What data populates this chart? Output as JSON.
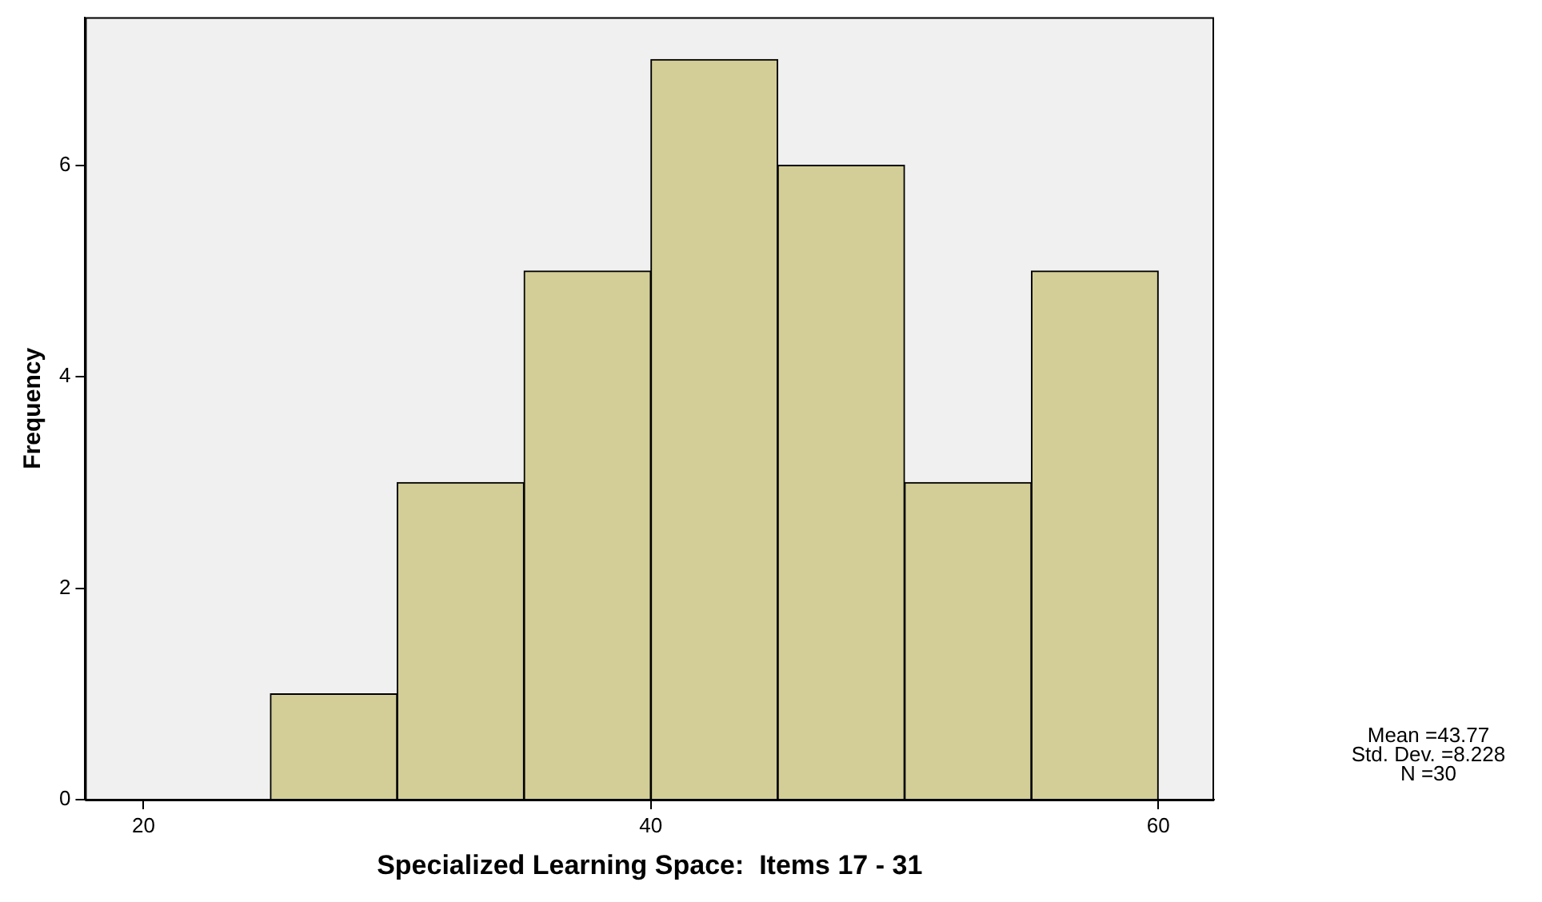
{
  "chart_data": {
    "type": "histogram",
    "xlabel": "Specialized Learning Space:  Items 17 - 31",
    "ylabel": "Frequency",
    "bins": [
      25,
      30,
      35,
      40,
      45,
      50,
      55,
      60
    ],
    "values": [
      1,
      3,
      5,
      7,
      6,
      3,
      5
    ],
    "color": "#d3ce97",
    "xlim": [
      17.7,
      62.2
    ],
    "xticks": [
      20,
      40,
      60
    ],
    "ylim": [
      0,
      7.4
    ],
    "yticks": [
      0,
      2,
      4,
      6
    ],
    "grid": false,
    "legend": false,
    "annotations": [
      "Mean =43.77",
      "Std. Dev. =8.228",
      "N =30"
    ]
  }
}
